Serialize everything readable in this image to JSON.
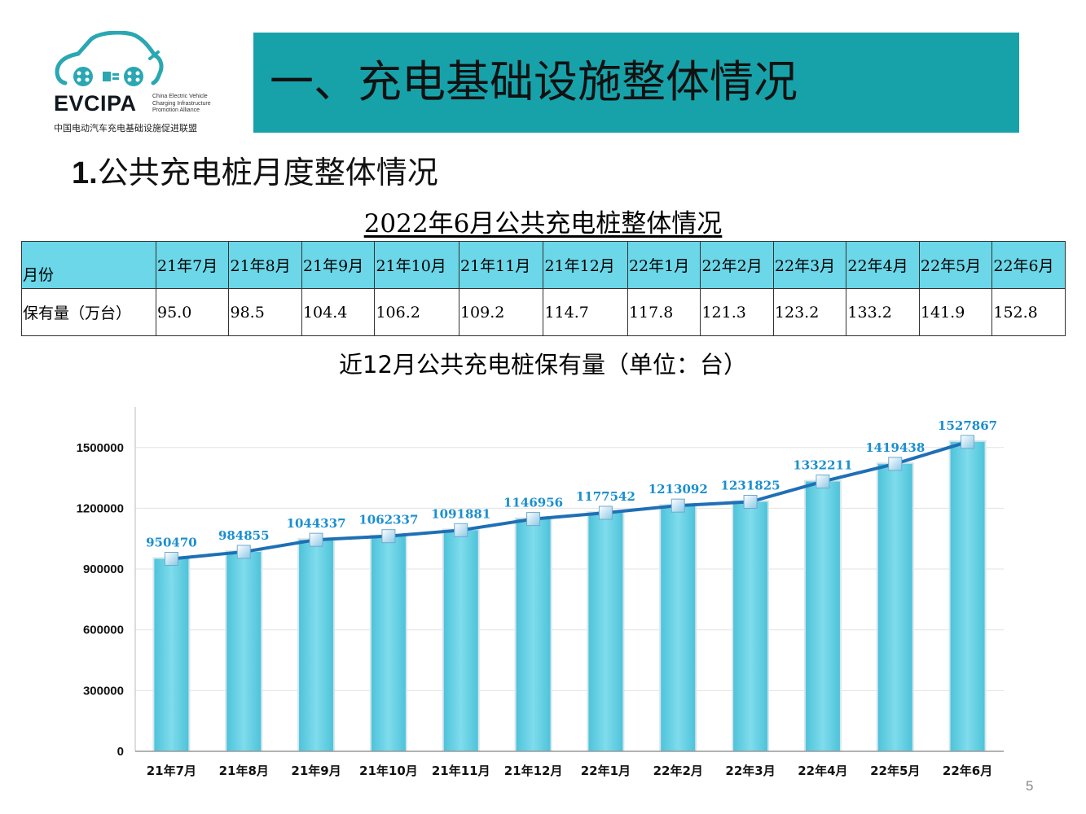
{
  "logo": {
    "word": "EVCIPA",
    "tagline": [
      "China Electric Vehicle",
      "Charging Infrastructure",
      "Promotion Alliance"
    ],
    "cn_name": "中国电动汽车充电基础设施促进联盟",
    "icon": "ev-car-plug-icon",
    "color": "#2aa7b2"
  },
  "banner": {
    "title": "一、充电基础设施整体情况",
    "color": "#17a2aa"
  },
  "section_title": {
    "num": "1.",
    "text": "公共充电桩月度整体情况"
  },
  "table": {
    "title": "2022年6月公共充电桩整体情况",
    "header_label": "月份",
    "row_label": "保有量（万台）",
    "columns": [
      "21年7月",
      "21年8月",
      "21年9月",
      "21年10月",
      "21年11月",
      "21年12月",
      "22年1月",
      "22年2月",
      "22年3月",
      "22年4月",
      "22年5月",
      "22年6月"
    ],
    "values": [
      "95.0",
      "98.5",
      "104.4",
      "106.2",
      "109.2",
      "114.7",
      "117.8",
      "121.3",
      "123.2",
      "133.2",
      "141.9",
      "152.8"
    ],
    "header_color": "#6bd7e8"
  },
  "chart_data": {
    "type": "bar",
    "title": "近12月公共充电桩保有量（单位：台）",
    "categories": [
      "21年7月",
      "21年8月",
      "21年9月",
      "21年10月",
      "21年11月",
      "21年12月",
      "22年1月",
      "22年2月",
      "22年3月",
      "22年4月",
      "22年5月",
      "22年6月"
    ],
    "values": [
      950470,
      984855,
      1044337,
      1062337,
      1091881,
      1146956,
      1177542,
      1213092,
      1231825,
      1332211,
      1419438,
      1527867
    ],
    "overlay": "line",
    "yticks": [
      0,
      300000,
      600000,
      900000,
      1200000,
      1500000
    ],
    "ylim": [
      0,
      1700000
    ],
    "grid": true,
    "colors": {
      "bar": "#6fd3e6",
      "line": "#1f6fb5",
      "label": "#1a8fcf",
      "marker": "#a9d9f0"
    }
  },
  "page_number": "5"
}
